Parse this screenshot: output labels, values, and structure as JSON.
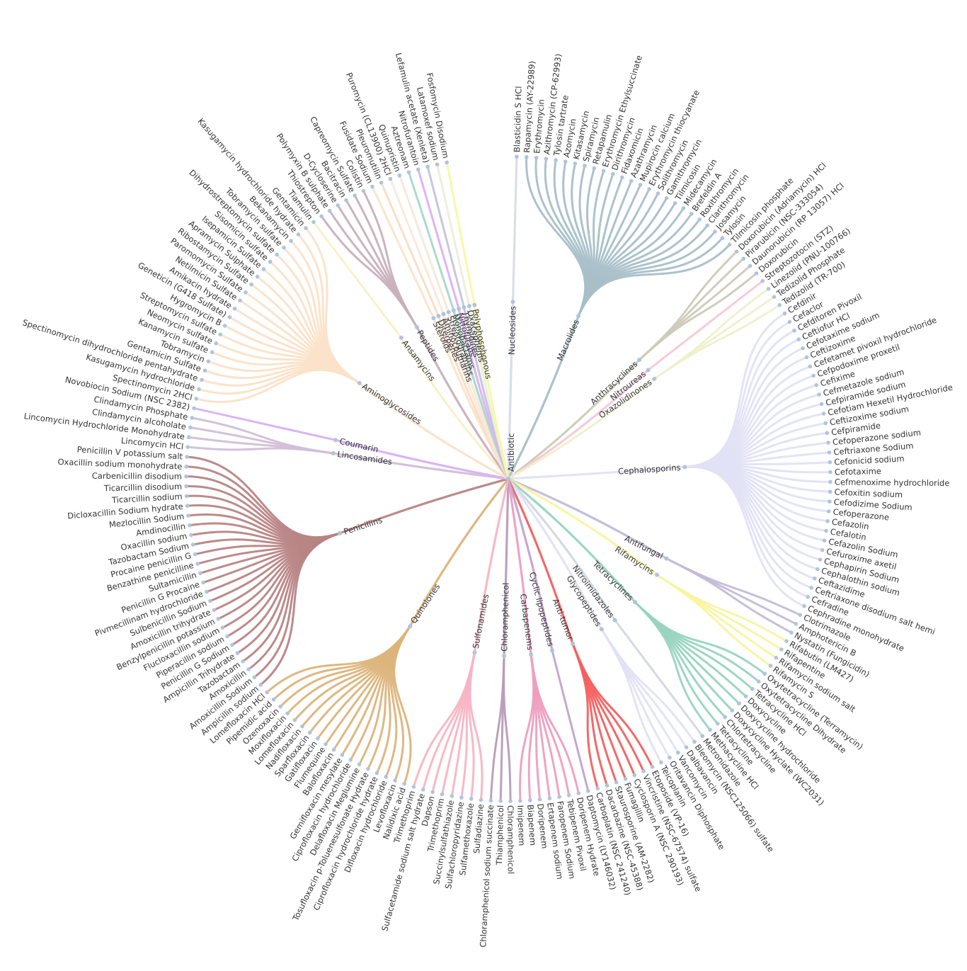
{
  "tree": {
    "root": "Antibiotic",
    "categories": [
      {
        "name": "Nucleosides",
        "color": "#d6dbe8",
        "drugs": [
          "Blasticidin S HCl"
        ]
      },
      {
        "name": "Macrolides",
        "color": "#a8bfc8",
        "drugs": [
          "Rapamycin (AY-22989)",
          "Erythromycin",
          "Azithromycin (CP-62993)",
          "Tylosin tartrate",
          "Azomycin",
          "Kitasamycin",
          "Spiramycin",
          "Retapamulin",
          "Erythromycin Ethylsuccinate",
          "Dirithromycin",
          "Fidaxomicin",
          "Azathramycin",
          "Mupirocin calcium",
          "Erythromycin thiocyanate",
          "Solithromycin",
          "Gamithromycin",
          "Tilmicosin",
          "Midecamycin",
          "Brefeldin A",
          "Roxithromycin",
          "Clarithromycin",
          "Josamycin",
          "Tylosin",
          "Tilmicosin phosphate"
        ]
      },
      {
        "name": "Anthracyclines",
        "color": "#cccbbb",
        "drugs": [
          "Doxorubicin (Adriamycin) HCl",
          "Pirarubicin (NSC-333054)",
          "Daunorubicin (RP 13057) HCl",
          "Doxorubicin"
        ]
      },
      {
        "name": "Nitroureas",
        "color": "#f8c8d4",
        "drugs": [
          "Streptozotocin (STZ)"
        ]
      },
      {
        "name": "Oxazolidinones",
        "color": "#eef0cc",
        "drugs": [
          "Linezolid (PNU-100766)",
          "Tedizolid Phosphate",
          "Tedizolid (TR-700)"
        ]
      },
      {
        "name": "Cephalosporins",
        "color": "#e2e2f5",
        "drugs": [
          "Cefdinir",
          "Cefaclor",
          "Cefditoren Pivoxil",
          "Ceftiofur HCl",
          "Cefotaxime sodium",
          "Ceftizoxime",
          "Cefetamet pivoxil hydrochloride",
          "Cefpodoxime proxetil",
          "Cefixime",
          "Cefmetazole sodium",
          "Cefpiramide sodium",
          "Cefotiam Hexetil Hydrochloride",
          "Ceftizoxime sodium",
          "Cefpiramide",
          "Cefoperazone sodium",
          "Ceftriaxone Sodium",
          "Cefonicid sodium",
          "Cefotaxime",
          "Cefmenoxime hydrochloride",
          "Cefoxitin sodium",
          "Cefodizime Sodium",
          "Cefoperazone",
          "Cefazolin",
          "Cefalotin",
          "Cefazolin Sodium",
          "Cefuroxime axetil",
          "Cephapirin Sodium",
          "Cephalothin sodium",
          "Ceftazidime",
          "Ceftriaxone disodium salt hemi",
          "Cefradine",
          "Cephradine monohydrate"
        ]
      },
      {
        "name": "Antifungal",
        "color": "#c2bcd8",
        "drugs": [
          "Clotrimazole",
          "Amphotericin B",
          "Nystatin (Fungicidin)"
        ]
      },
      {
        "name": "Rifamycins",
        "color": "#f8f4a0",
        "drugs": [
          "Rifabutin (LM427)",
          "Rifapentine",
          "Rifamycin sodium salt",
          "Rifamycin S"
        ]
      },
      {
        "name": "Tetracyclines",
        "color": "#98d4c0",
        "drugs": [
          "Oxytetracycline (Terramycin)",
          "Oxytetracycline Dihydrate",
          "Tetracycline HCl",
          "Doxycycline",
          "Doxycycline hydrochloride",
          "Doxycycline Hyclate (WC2031)",
          "Chlortetracycline",
          "Tetracycline",
          "Methacycline HCl"
        ]
      },
      {
        "name": "Nitroimidazoles",
        "color": "#d2d8e2",
        "drugs": [
          "Metronidazole"
        ]
      },
      {
        "name": "Glycopeptides",
        "color": "#e2e2f5",
        "drugs": [
          "Bleomycin (NSC125066) sulfate",
          "Dalbavancin",
          "Vancomycin",
          "Oritavancin Diphosphate",
          "Teicoplanin"
        ]
      },
      {
        "name": "Anti-tumor",
        "color": "#f46060",
        "drugs": [
          "Etoposide (VP-16)",
          "Vincristine (NSC-67574) sulfate",
          "Cyclosporin A (NSC 290193)",
          "Fumagillin",
          "Staurosporine (AM-2282)",
          "Dacarbazine (NSC-45388)",
          "Carboplatin (NSC 241240)"
        ]
      },
      {
        "name": "Cyclic lipopeptides",
        "color": "#c4a2cc",
        "drugs": [
          "Daptomycin (LY146032)"
        ]
      },
      {
        "name": "Carbapenems",
        "color": "#ee9ec0",
        "drugs": [
          "Doripenem Hydrate",
          "Tebipenem Pivoxil",
          "Faropenem Sodium",
          "Ertapenem sodium",
          "Doripenem",
          "Biapenem",
          "Imipenem"
        ]
      },
      {
        "name": "Chloramphenicol",
        "color": "#b89cb8",
        "drugs": [
          "Chloramphenicol",
          "Thiamphenicol",
          "Chloramphenicol sodium succinate"
        ]
      },
      {
        "name": "Sulfonamides",
        "color": "#f8b4c4",
        "drugs": [
          "Sulfadiazine",
          "Sulfamethoxazole",
          "Sulfachloropyridazine",
          "Succinylsulfathiazole",
          "Trimethoprim",
          "Dapson",
          "Sulfacetamide sodium salt hydrate",
          "Trimethoprim"
        ]
      },
      {
        "name": "Quinolones",
        "color": "#dcb47a",
        "drugs": [
          "Nalidixic acid",
          "Levofloxacin",
          "Difloxacin hydrochloride",
          "Ciprofloxacin hydrochloride hydrate",
          "Tosufloxacin p-Toluenesulfonate Hydrate",
          "Delafloxacin Meglumine",
          "Ciprofloxacin hydrochloride",
          "Gemifloxacin mesylate",
          "Balofloxacin",
          "Flumequine",
          "Gatifloxacin",
          "Sparfloxacin",
          "Nadifloxacin",
          "Lomefloxacin",
          "Moxifloxacin",
          "Ozenoxacin",
          "Pipemidic acid",
          "Lomefloxacin HCl"
        ]
      },
      {
        "name": "Penicillins",
        "color": "#b88484",
        "drugs": [
          "Ampicillin sodium",
          "Amoxicillin Sodium",
          "Amoxicillin",
          "Tazobactam",
          "Ampicillin Trihydrate",
          "Penicillin G Sodium",
          "Piperacillin sodium",
          "Flucloxacillin sodium",
          "Benzylpenicillin potassium",
          "Amoxicillin trihydrate",
          "Sulbenicillin Sodium",
          "Pivmecillinam hydrochloride",
          "Penicillin G Procaine",
          "Sultamicillin",
          "Benzathine penicilline",
          "Procaine penicillin G",
          "Tazobactam Sodium",
          "Oxacillin sodium",
          "Amdinocillin",
          "Mezlocillin Sodium",
          "Dicloxacillin Sodium hydrate",
          "Ticarcillin sodium",
          "Ticarcillin disodium",
          "Carbenicillin disodium",
          "Oxacillin sodium monohydrate",
          "Penicillin V potassium salt"
        ]
      },
      {
        "name": "Lincosamides",
        "color": "#d2bed8",
        "drugs": [
          "Lincomycin HCl",
          "Lincomycin Hydrochloride Monohydrate",
          "Clindamycin alcoholate",
          "Clindamycin Phosphate"
        ]
      },
      {
        "name": "Coumarin",
        "color": "#d8b0f4",
        "drugs": [
          "Novobiocin Sodium (NSC 2382)"
        ]
      },
      {
        "name": "Aminoglycosides",
        "color": "#fbe2c8",
        "drugs": [
          "Spectinomycin 2HCl",
          "Kasugamycin hydrochloride",
          "Spectinomycin dihydrochloride pentahydrate",
          "Gentamicin Sulfate",
          "Tobramycin",
          "Kanamycin sulfate",
          "Neomycin sulfate",
          "Streptomycin sulfate",
          "Hygromycin B",
          "Geneticin (G418 Sulfate)",
          "Amikacin hydrate",
          "Netilmicin Sulfate",
          "Paromomycin Sulfate",
          "Ribostamycin Sulfate",
          "Apramycin Sulphate",
          "Isepamicin Sulfate",
          "Sisomicin sulfate",
          "Dihydrostreptomycin sulfate",
          "Tobramycin sulfate",
          "Bekanamycin",
          "Kasugamycin hydrochloride hydrate",
          "Gentamicin"
        ]
      },
      {
        "name": "Ansamycins",
        "color": "#f8f0c8",
        "drugs": [
          "Tiamulin"
        ]
      },
      {
        "name": "Peptides",
        "color": "#c8b0ba",
        "drugs": [
          "Thiostrepton",
          "Polymyxin B sulphate",
          "D-Cycloserine",
          "Bacitracin",
          "Capreomycin Sulfate",
          "Colistin"
        ]
      },
      {
        "name": "Steroids",
        "color": "#fbe4c8",
        "drugs": [
          "Fusidate Sodium"
        ]
      },
      {
        "name": "Diterpenes",
        "color": "#fbdcc4",
        "drugs": [
          "Pleuromutilin"
        ]
      },
      {
        "name": "Aminocoumarins",
        "color": "#fbe8d8",
        "drugs": [
          "Puromycin (CL13900) 2HCl"
        ]
      },
      {
        "name": "Streptogramins",
        "color": "#f4e8d8",
        "drugs": [
          "Quinupristin"
        ]
      },
      {
        "name": "Monobactams",
        "color": "#a8d8c8",
        "drugs": [
          "Aztreonam"
        ]
      },
      {
        "name": "Nitrofurans",
        "color": "#dcb0f4",
        "drugs": [
          "Nitrofurantoin"
        ]
      },
      {
        "name": "Thymidines",
        "color": "#c8c2dc",
        "drugs": [
          "Lefamulin acetate (Xenleta)"
        ]
      },
      {
        "name": "Oxacephems",
        "color": "#eaeedc",
        "drugs": [
          "Latamoxef sodium"
        ]
      },
      {
        "name": "Polyphosphonous",
        "color": "#f8f8a0",
        "drugs": [
          "Fosfomycin Disodium"
        ]
      }
    ]
  }
}
